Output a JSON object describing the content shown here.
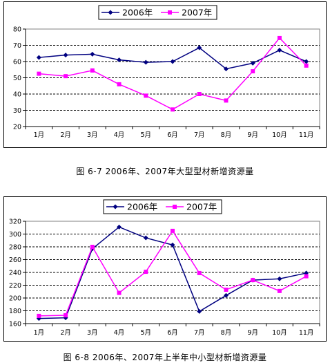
{
  "colors": {
    "series_2006": "#000080",
    "series_2007": "#ff00ff",
    "grid": "#000000",
    "frame": "#000000"
  },
  "captions": {
    "fig1": "图 6-7   2006年、2007年大型型材新增资源量",
    "fig2": "图   6-8   2006年、2007年上半年中小型材新增资源量"
  },
  "chart_data": [
    {
      "type": "line",
      "title": "",
      "xlabel": "",
      "ylabel": "",
      "categories": [
        "1月",
        "2月",
        "3月",
        "4月",
        "5月",
        "6月",
        "7月",
        "8月",
        "9月",
        "10月",
        "11月"
      ],
      "ylim": [
        20,
        80
      ],
      "yticks": [
        20,
        30,
        40,
        50,
        60,
        70,
        80
      ],
      "grid": "horizontal dashed",
      "legend": "top-center",
      "series": [
        {
          "name": "2006年",
          "marker": "diamond",
          "color": "#000080",
          "values": [
            62.5,
            64,
            64.5,
            61,
            59.5,
            60,
            68.5,
            55.5,
            59,
            67,
            60
          ]
        },
        {
          "name": "2007年",
          "marker": "square",
          "color": "#ff00ff",
          "values": [
            52.5,
            51,
            54.5,
            46,
            39,
            30.5,
            40,
            36,
            54,
            74.5,
            57.5
          ]
        }
      ]
    },
    {
      "type": "line",
      "title": "",
      "xlabel": "",
      "ylabel": "",
      "categories": [
        "1月",
        "2月",
        "3月",
        "4月",
        "5月",
        "6月",
        "7月",
        "8月",
        "9月",
        "10月",
        "11月"
      ],
      "ylim": [
        160,
        320
      ],
      "yticks": [
        160,
        180,
        200,
        220,
        240,
        260,
        280,
        300,
        320
      ],
      "grid": "horizontal dashed",
      "legend": "top-center",
      "series": [
        {
          "name": "2006年",
          "marker": "diamond",
          "color": "#000080",
          "values": [
            168,
            169,
            277,
            311,
            294,
            283,
            179,
            204,
            228,
            230,
            239
          ]
        },
        {
          "name": "2007年",
          "marker": "square",
          "color": "#ff00ff",
          "values": [
            172,
            173,
            280,
            208,
            241,
            305,
            239,
            213,
            228,
            211,
            234
          ]
        }
      ]
    }
  ]
}
